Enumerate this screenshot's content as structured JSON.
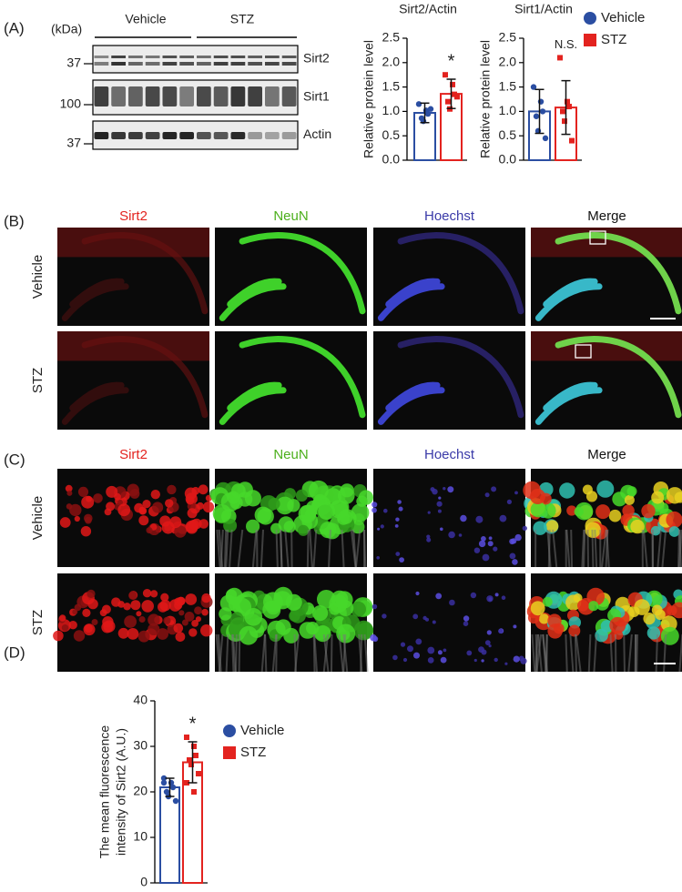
{
  "panels": [
    {
      "label": "(A)"
    },
    {
      "label": "(B)"
    },
    {
      "label": "(C)"
    },
    {
      "label": "(D)"
    }
  ],
  "blot": {
    "unit": "(kDa)",
    "groups": [
      "Vehicle",
      "STZ"
    ],
    "rows": [
      {
        "name": "Sirt2",
        "marker": "37"
      },
      {
        "name": "Sirt1",
        "marker": "100"
      },
      {
        "name": "Actin",
        "marker": "37"
      }
    ]
  },
  "images_b": {
    "columns": [
      "Sirt2",
      "NeuN",
      "Hoechst",
      "Merge"
    ],
    "rows": [
      "Vehicle",
      "STZ"
    ]
  },
  "images_c": {
    "columns": [
      "Sirt2",
      "NeuN",
      "Hoechst",
      "Merge"
    ],
    "rows": [
      "Vehicle",
      "STZ"
    ]
  },
  "chart_data": [
    {
      "type": "bar",
      "title": "Sirt2/Actin",
      "ylabel": [
        "Relative protein level"
      ],
      "ylim": [
        0,
        2.5
      ],
      "yticks": [
        {
          "value": 0,
          "label": "0.0"
        },
        {
          "value": 0.5,
          "label": "0.5"
        },
        {
          "value": 1,
          "label": "1.0"
        },
        {
          "value": 1.5,
          "label": "1.5"
        },
        {
          "value": 2,
          "label": "2.0"
        },
        {
          "value": 2.5,
          "label": "2.5"
        }
      ],
      "annotation": "*",
      "series": [
        {
          "color": "#2b4ea2",
          "values": [
            0.97
          ],
          "errors": [
            0.2
          ],
          "points": [
            1.15,
            1.02,
            0.95,
            0.86,
            0.8,
            1.05
          ]
        },
        {
          "color": "#e3231f",
          "values": [
            1.36
          ],
          "errors": [
            0.3
          ],
          "points": [
            1.75,
            1.55,
            1.35,
            1.2,
            1.05,
            1.3
          ]
        }
      ]
    },
    {
      "type": "bar",
      "title": "Sirt1/Actin",
      "ylabel": [
        "Relative protein level"
      ],
      "ylim": [
        0,
        2.5
      ],
      "yticks": [
        {
          "value": 0,
          "label": "0.0"
        },
        {
          "value": 0.5,
          "label": "0.5"
        },
        {
          "value": 1,
          "label": "1.0"
        },
        {
          "value": 1.5,
          "label": "1.5"
        },
        {
          "value": 2,
          "label": "2.0"
        },
        {
          "value": 2.5,
          "label": "2.5"
        }
      ],
      "annotation": "N.S.",
      "legend": "right",
      "series": [
        {
          "name": "Vehicle",
          "color": "#2b4ea2",
          "values": [
            1.0
          ],
          "errors": [
            0.45
          ],
          "points": [
            1.5,
            1.2,
            1.0,
            0.9,
            0.6,
            0.45
          ]
        },
        {
          "name": "STZ",
          "color": "#e3231f",
          "values": [
            1.08
          ],
          "errors": [
            0.55
          ],
          "points": [
            2.1,
            1.2,
            1.1,
            1.0,
            0.8,
            0.4
          ]
        }
      ]
    },
    {
      "type": "bar",
      "ylabel": [
        "The mean fluorescence",
        "intensity of Sirt2 (A.U.)"
      ],
      "ylim": [
        0,
        40
      ],
      "yticks": [
        0,
        10,
        20,
        30,
        40
      ],
      "annotation": "*",
      "legend": "right",
      "series": [
        {
          "name": "Vehicle",
          "color": "#2b4ea2",
          "values": [
            21
          ],
          "errors": [
            2
          ],
          "points": [
            23,
            22,
            21,
            20,
            19,
            18,
            22
          ]
        },
        {
          "name": "STZ",
          "color": "#e3231f",
          "values": [
            26.5
          ],
          "errors": [
            4.5
          ],
          "points": [
            32,
            30,
            28,
            27,
            26,
            24,
            22,
            20
          ]
        }
      ]
    }
  ]
}
